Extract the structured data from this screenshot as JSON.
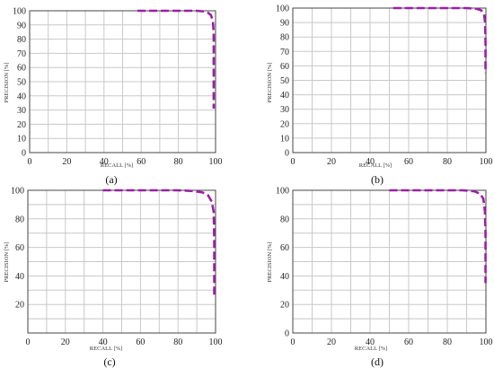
{
  "colors": {
    "curve": "#9b1ea8",
    "grid": "#c8c8c8"
  },
  "chart_data": [
    {
      "type": "line",
      "panel_label": "(a)",
      "xlabel": "RECALL [%]",
      "ylabel": "PRECISION [%]",
      "xlim": [
        0,
        100
      ],
      "ylim": [
        0,
        100
      ],
      "xticks": [
        0,
        20,
        40,
        60,
        80,
        100
      ],
      "yticks": [
        0,
        10,
        20,
        30,
        40,
        50,
        60,
        70,
        80,
        90,
        100
      ],
      "grid": true,
      "series": [
        {
          "x": [
            58,
            70,
            80,
            90,
            94,
            96,
            97.5,
            98.5,
            99,
            99,
            99,
            99,
            99
          ],
          "y": [
            100,
            100,
            100,
            100,
            99.5,
            98.5,
            97,
            93,
            85,
            70,
            55,
            40,
            31
          ]
        }
      ]
    },
    {
      "type": "line",
      "panel_label": "(b)",
      "xlabel": "RECALL [%]",
      "ylabel": "PRECISION [%]",
      "xlim": [
        0,
        100
      ],
      "ylim": [
        0,
        100
      ],
      "xticks": [
        0,
        20,
        40,
        60,
        80,
        100
      ],
      "yticks": [
        0,
        10,
        20,
        30,
        40,
        50,
        60,
        70,
        80,
        90,
        100
      ],
      "grid": true,
      "series": [
        {
          "x": [
            52,
            60,
            70,
            80,
            90,
            95,
            97.5,
            99,
            99.6,
            99.8,
            99.8
          ],
          "y": [
            100,
            100,
            100,
            100,
            100,
            99.5,
            98.5,
            96,
            90,
            75,
            55
          ]
        }
      ]
    },
    {
      "type": "line",
      "panel_label": "(c)",
      "xlabel": "RECALL [%]",
      "ylabel": "PRECISION [%]",
      "xlim": [
        0,
        100
      ],
      "ylim": [
        0,
        100
      ],
      "xticks": [
        0,
        20,
        40,
        60,
        80,
        100
      ],
      "yticks": [
        20,
        40,
        60,
        80,
        100
      ],
      "grid": true,
      "series": [
        {
          "x": [
            40,
            50,
            60,
            70,
            80,
            88,
            93,
            96,
            98,
            99,
            99.3,
            99.3,
            99.3
          ],
          "y": [
            100,
            100,
            100,
            100,
            100,
            99.5,
            98.5,
            96.5,
            92,
            85,
            65,
            45,
            25
          ]
        }
      ]
    },
    {
      "type": "line",
      "panel_label": "(d)",
      "xlabel": "RECALL [%]",
      "ylabel": "PRECISION [%]",
      "xlim": [
        0,
        100
      ],
      "ylim": [
        0,
        100
      ],
      "xticks": [
        0,
        20,
        40,
        60,
        80,
        100
      ],
      "yticks": [
        0,
        20,
        40,
        60,
        80,
        100
      ],
      "grid": true,
      "series": [
        {
          "x": [
            50,
            60,
            70,
            80,
            88,
            94,
            97,
            98.7,
            99.5,
            99.8,
            99.8,
            99.8
          ],
          "y": [
            100,
            100,
            100,
            100,
            100,
            99.3,
            97.5,
            94,
            85,
            70,
            52,
            35
          ]
        }
      ]
    }
  ]
}
